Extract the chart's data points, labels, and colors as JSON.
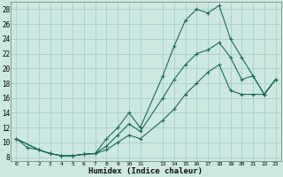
{
  "xlabel": "Humidex (Indice chaleur)",
  "bg_color": "#cce8e0",
  "grid_color": "#aacccc",
  "line_color": "#1a6b5a",
  "xlim": [
    -0.5,
    23.5
  ],
  "ylim": [
    7.5,
    29
  ],
  "xticks": [
    0,
    1,
    2,
    3,
    4,
    5,
    6,
    7,
    8,
    9,
    10,
    11,
    13,
    14,
    15,
    16,
    17,
    18,
    19,
    20,
    21,
    22,
    23
  ],
  "yticks": [
    8,
    10,
    12,
    14,
    16,
    18,
    20,
    22,
    24,
    26,
    28
  ],
  "line1_x": [
    0,
    1,
    2,
    3,
    4,
    5,
    6,
    7,
    8,
    9,
    10,
    11,
    13,
    14,
    15,
    16,
    17,
    18,
    19,
    20,
    21,
    22,
    23
  ],
  "line1_y": [
    10.5,
    9.3,
    9.0,
    8.5,
    8.2,
    8.2,
    8.4,
    8.5,
    10.5,
    12.0,
    14.0,
    12.0,
    19.0,
    23.0,
    26.5,
    28.0,
    27.5,
    28.5,
    24.0,
    21.5,
    19.0,
    16.5,
    18.5
  ],
  "line2_x": [
    0,
    2,
    3,
    4,
    5,
    6,
    7,
    8,
    9,
    10,
    11,
    13,
    14,
    15,
    16,
    17,
    18,
    19,
    20,
    21,
    22,
    23
  ],
  "line2_y": [
    10.5,
    9.0,
    8.5,
    8.2,
    8.2,
    8.4,
    8.5,
    9.5,
    11.0,
    12.5,
    11.5,
    16.0,
    18.5,
    20.5,
    22.0,
    22.5,
    23.5,
    21.5,
    18.5,
    19.0,
    16.5,
    18.5
  ],
  "line3_x": [
    0,
    2,
    3,
    4,
    5,
    6,
    7,
    8,
    9,
    10,
    11,
    13,
    14,
    15,
    16,
    17,
    18,
    19,
    20,
    21,
    22,
    23
  ],
  "line3_y": [
    10.5,
    9.0,
    8.5,
    8.2,
    8.2,
    8.4,
    8.5,
    9.0,
    10.0,
    11.0,
    10.5,
    13.0,
    14.5,
    16.5,
    18.0,
    19.5,
    20.5,
    17.0,
    16.5,
    16.5,
    16.5,
    18.5
  ]
}
